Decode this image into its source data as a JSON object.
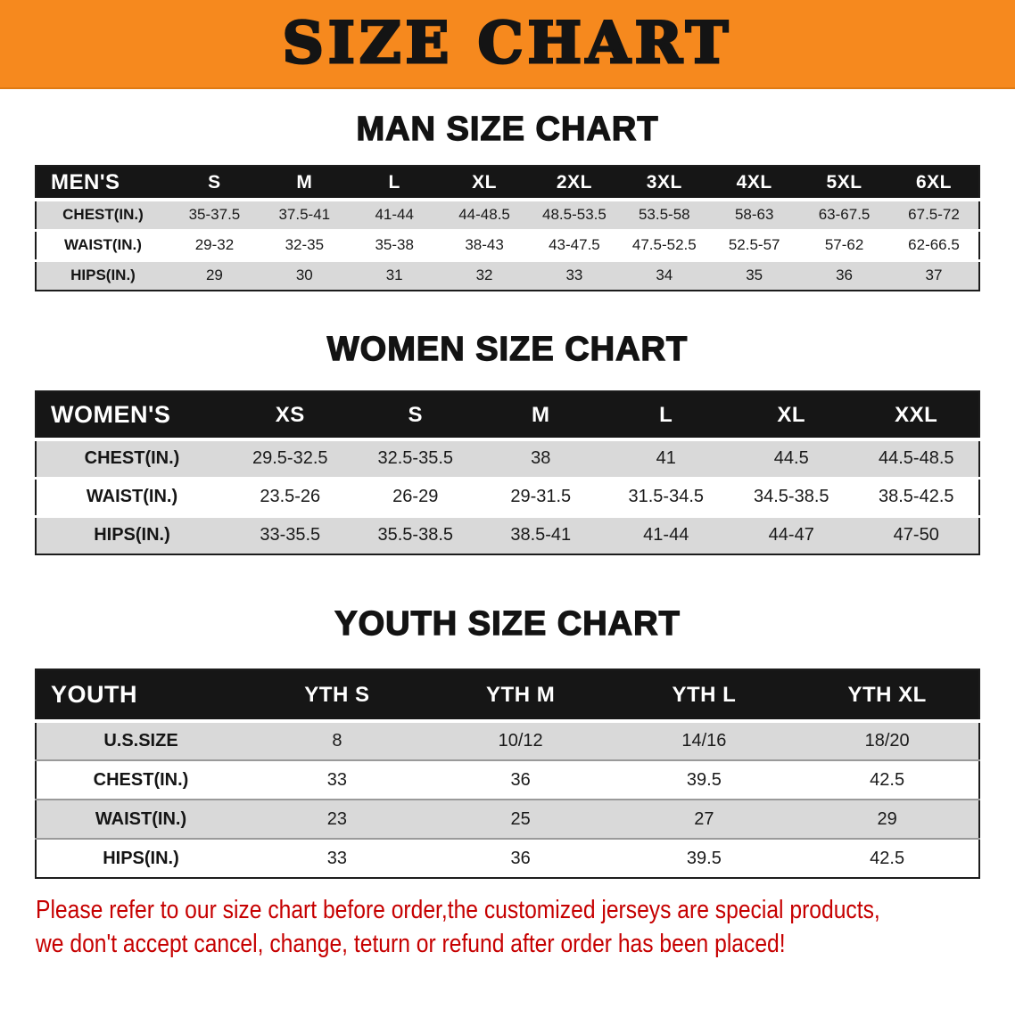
{
  "banner": {
    "title": "SIZE CHART"
  },
  "colors": {
    "banner_bg": "#F6891E",
    "table_header_bg": "#161616",
    "row_shade": "#D9D9D9",
    "note_red": "#C60000"
  },
  "sections": {
    "men": {
      "heading": "MAN SIZE CHART",
      "table": {
        "header": [
          "MEN'S",
          "S",
          "M",
          "L",
          "XL",
          "2XL",
          "3XL",
          "4XL",
          "5XL",
          "6XL"
        ],
        "rows": [
          [
            "CHEST(IN.)",
            "35-37.5",
            "37.5-41",
            "41-44",
            "44-48.5",
            "48.5-53.5",
            "53.5-58",
            "58-63",
            "63-67.5",
            "67.5-72"
          ],
          [
            "WAIST(IN.)",
            "29-32",
            "32-35",
            "35-38",
            "38-43",
            "43-47.5",
            "47.5-52.5",
            "52.5-57",
            "57-62",
            "62-66.5"
          ],
          [
            "HIPS(IN.)",
            "29",
            "30",
            "31",
            "32",
            "33",
            "34",
            "35",
            "36",
            "37"
          ]
        ]
      }
    },
    "women": {
      "heading": "WOMEN SIZE CHART",
      "table": {
        "header": [
          "WOMEN'S",
          "XS",
          "S",
          "M",
          "L",
          "XL",
          "XXL"
        ],
        "rows": [
          [
            "CHEST(IN.)",
            "29.5-32.5",
            "32.5-35.5",
            "38",
            "41",
            "44.5",
            "44.5-48.5"
          ],
          [
            "WAIST(IN.)",
            "23.5-26",
            "26-29",
            "29-31.5",
            "31.5-34.5",
            "34.5-38.5",
            "38.5-42.5"
          ],
          [
            "HIPS(IN.)",
            "33-35.5",
            "35.5-38.5",
            "38.5-41",
            "41-44",
            "44-47",
            "47-50"
          ]
        ]
      }
    },
    "youth": {
      "heading": "YOUTH SIZE CHART",
      "table": {
        "header": [
          "YOUTH",
          "YTH S",
          "YTH M",
          "YTH L",
          "YTH XL"
        ],
        "rows": [
          [
            "U.S.SIZE",
            "8",
            "10/12",
            "14/16",
            "18/20"
          ],
          [
            "CHEST(IN.)",
            "33",
            "36",
            "39.5",
            "42.5"
          ],
          [
            "WAIST(IN.)",
            "23",
            "25",
            "27",
            "29"
          ],
          [
            "HIPS(IN.)",
            "33",
            "36",
            "39.5",
            "42.5"
          ]
        ]
      }
    }
  },
  "footer": {
    "line1": "Please refer to our size chart before order,the customized jerseys are special products,",
    "line2": "we don't accept cancel, change, teturn or refund after order has been placed!"
  }
}
